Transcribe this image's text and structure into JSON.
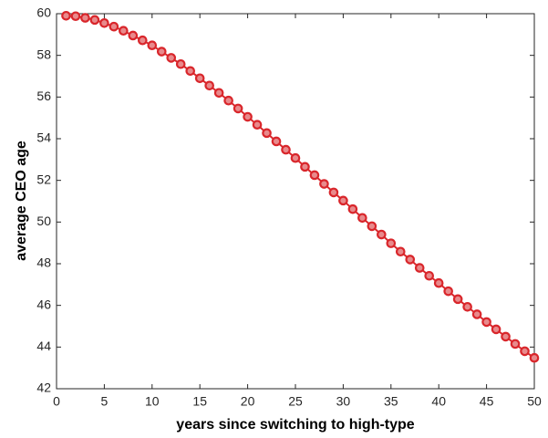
{
  "chart_data": {
    "type": "line",
    "xlabel": "years since switching to high-type",
    "ylabel": "average CEO age",
    "x": [
      1,
      2,
      3,
      4,
      5,
      6,
      7,
      8,
      9,
      10,
      11,
      12,
      13,
      14,
      15,
      16,
      17,
      18,
      19,
      20,
      21,
      22,
      23,
      24,
      25,
      26,
      27,
      28,
      29,
      30,
      31,
      32,
      33,
      34,
      35,
      36,
      37,
      38,
      39,
      40,
      41,
      42,
      43,
      44,
      45,
      46,
      47,
      48,
      49,
      50
    ],
    "series": [
      {
        "color": "#d9262b",
        "marker_fill": "#e88a8c",
        "values": [
          59.9,
          59.88,
          59.8,
          59.7,
          59.55,
          59.38,
          59.18,
          58.95,
          58.72,
          58.48,
          58.18,
          57.88,
          57.58,
          57.25,
          56.9,
          56.55,
          56.2,
          55.83,
          55.45,
          55.05,
          54.67,
          54.27,
          53.87,
          53.47,
          53.07,
          52.65,
          52.25,
          51.83,
          51.42,
          51.03,
          50.62,
          50.2,
          49.8,
          49.4,
          48.98,
          48.58,
          48.2,
          47.8,
          47.42,
          47.07,
          46.68,
          46.3,
          45.93,
          45.57,
          45.2,
          44.85,
          44.5,
          44.15,
          43.8,
          43.48
        ]
      }
    ],
    "xlim": [
      0,
      50
    ],
    "xticks": [
      0,
      5,
      10,
      15,
      20,
      25,
      30,
      35,
      40,
      45,
      50
    ],
    "ylim": [
      42,
      60
    ],
    "yticks": [
      42,
      44,
      46,
      48,
      50,
      52,
      54,
      56,
      58,
      60
    ]
  }
}
